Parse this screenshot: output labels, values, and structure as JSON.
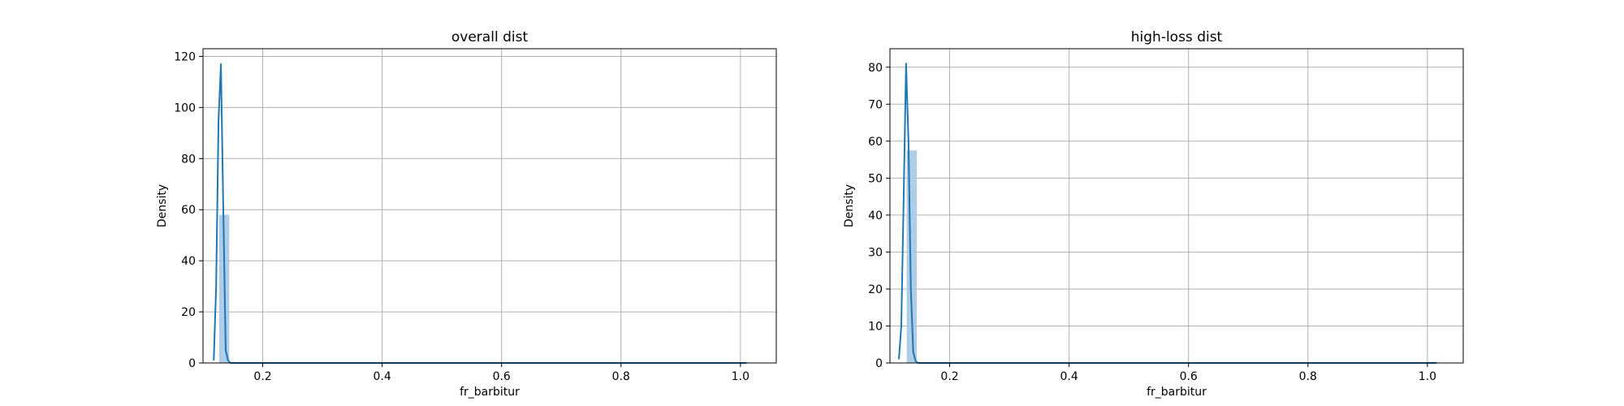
{
  "chart_data": [
    {
      "type": "histogram",
      "title": "overall dist",
      "xlabel": "fr_barbitur",
      "ylabel": "Density",
      "xlim": [
        0.1,
        1.06
      ],
      "ylim": [
        0,
        123
      ],
      "xticks": [
        0.2,
        0.4,
        0.6,
        0.8,
        1.0
      ],
      "xtick_labels": [
        "0.2",
        "0.4",
        "0.6",
        "0.8",
        "1.0"
      ],
      "yticks": [
        0,
        20,
        40,
        60,
        80,
        100,
        120
      ],
      "ytick_labels": [
        "0",
        "20",
        "40",
        "60",
        "80",
        "100",
        "120"
      ],
      "grid": true,
      "bars": [
        {
          "x0": 0.127,
          "x1": 0.144,
          "height": 58
        },
        {
          "x0": 0.144,
          "x1": 1.0,
          "height": 0
        },
        {
          "x0": 1.0,
          "x1": 1.017,
          "height": 0.3
        }
      ],
      "kde": {
        "x": [
          0.118,
          0.122,
          0.126,
          0.13,
          0.134,
          0.138,
          0.142,
          0.146,
          0.2,
          0.4,
          0.6,
          0.8,
          1.0,
          1.01
        ],
        "y": [
          1,
          30,
          95,
          117,
          60,
          5,
          1,
          0,
          0,
          0,
          0,
          0,
          0,
          0
        ]
      }
    },
    {
      "type": "histogram",
      "title": "high-loss dist",
      "xlabel": "fr_barbitur",
      "ylabel": "Density",
      "xlim": [
        0.1,
        1.06
      ],
      "ylim": [
        0,
        85
      ],
      "xticks": [
        0.2,
        0.4,
        0.6,
        0.8,
        1.0
      ],
      "xtick_labels": [
        "0.2",
        "0.4",
        "0.6",
        "0.8",
        "1.0"
      ],
      "yticks": [
        0,
        10,
        20,
        30,
        40,
        50,
        60,
        70,
        80
      ],
      "ytick_labels": [
        "0",
        "10",
        "20",
        "30",
        "40",
        "50",
        "60",
        "70",
        "80"
      ],
      "grid": true,
      "bars": [
        {
          "x0": 0.128,
          "x1": 0.145,
          "height": 57.5
        },
        {
          "x0": 0.145,
          "x1": 1.0,
          "height": 0
        },
        {
          "x0": 1.0,
          "x1": 1.017,
          "height": 0.3
        }
      ],
      "kde": {
        "x": [
          0.115,
          0.119,
          0.123,
          0.127,
          0.131,
          0.135,
          0.139,
          0.143,
          0.147,
          0.2,
          0.4,
          0.6,
          0.8,
          1.0,
          1.015
        ],
        "y": [
          1,
          10,
          45,
          81,
          60,
          20,
          3,
          0.5,
          0,
          0,
          0,
          0,
          0,
          0,
          0
        ]
      }
    }
  ],
  "colors": {
    "bar": "#a6c8e4",
    "line": "#1f77b4",
    "grid": "#b0b0b0",
    "axes": "#000000"
  }
}
